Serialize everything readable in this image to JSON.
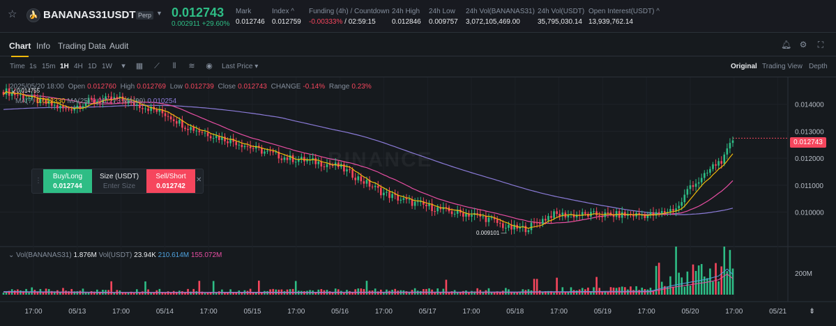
{
  "header": {
    "symbol": "BANANAS31USDT",
    "contract_type": "Perp",
    "last_price": "0.012743",
    "change": "0.002911 +29.60%",
    "stats": [
      {
        "label": "Mark",
        "value": "0.012746"
      },
      {
        "label": "Index ^",
        "value": "0.012759"
      },
      {
        "label": "Funding (4h) / Countdown",
        "value_neg": "-0.00333%",
        "value": " / 02:59:15"
      },
      {
        "label": "24h High",
        "value": "0.012846"
      },
      {
        "label": "24h Low",
        "value": "0.009757"
      },
      {
        "label": "24h Vol(BANANAS31)",
        "value": "3,072,105,469.00"
      },
      {
        "label": "24h Vol(USDT)",
        "value": "35,795,030.14"
      },
      {
        "label": "Open Interest(USDT) ^",
        "value": "13,939,762.14"
      }
    ]
  },
  "tabs": [
    "Chart",
    "Info",
    "Trading Data",
    "Audit"
  ],
  "toolbar": {
    "time_label": "Time",
    "timeframes": [
      "1s",
      "15m",
      "1H",
      "4H",
      "1D",
      "1W"
    ],
    "active_timeframe": "1H",
    "price_type": "Last Price",
    "views": [
      "Original",
      "Trading View",
      "Depth"
    ]
  },
  "ohlc": {
    "date": "2025/05/20 18:00",
    "open_label": "Open",
    "open": "0.012760",
    "high_label": "High",
    "high": "0.012769",
    "low_label": "Low",
    "low": "0.012739",
    "close_label": "Close",
    "close": "0.012743",
    "change_label": "CHANGE",
    "change": "-0.14%",
    "range_label": "Range",
    "range": "0.23%"
  },
  "ma": {
    "ma7_label": "MA(7)",
    "ma7": "0.012330",
    "ma25_label": "MA(25)",
    "ma25": "0.011273",
    "ma99_label": "MA(99)",
    "ma99": "0.010254"
  },
  "volume": {
    "label1": "Vol(BANANAS31)",
    "value1": "1.876M",
    "label2": "Vol(USDT)",
    "value2": "23.94K",
    "value3": "210.614M",
    "value4": "155.072M"
  },
  "trade_panel": {
    "buy_label": "Buy/Long",
    "buy_price": "0.012744",
    "size_label": "Size (USDT)",
    "size_placeholder": "Enter Size",
    "sell_label": "Sell/Short",
    "sell_price": "0.012742"
  },
  "annotations": {
    "high": "0.014755",
    "low": "0.009101"
  },
  "watermark": "BINANCE",
  "colors": {
    "up": "#2ebd85",
    "down": "#f6465d",
    "ma7": "#f0b90b",
    "ma25": "#e84ea3",
    "ma99": "#8b7bd8",
    "accent": "#f0b90b"
  },
  "chart_data": {
    "type": "candlestick",
    "price_axis": {
      "ticks": [
        "0.014000",
        "0.013000",
        "0.012000",
        "0.011000",
        "0.010000"
      ],
      "last_price": "0.012743",
      "range": [
        0.0088,
        0.015
      ]
    },
    "volume_axis": {
      "ticks": [
        "200M"
      ]
    },
    "x_labels": [
      "17:00",
      "05/13",
      "17:00",
      "05/14",
      "17:00",
      "05/15",
      "17:00",
      "05/16",
      "17:00",
      "05/17",
      "17:00",
      "05/18",
      "17:00",
      "05/19",
      "17:00",
      "05/20",
      "17:00",
      "05/21"
    ],
    "close_path": [
      [
        0,
        0.0145
      ],
      [
        10,
        0.0142
      ],
      [
        22,
        0.0138
      ],
      [
        30,
        0.0141
      ],
      [
        40,
        0.0142
      ],
      [
        50,
        0.0139
      ],
      [
        58,
        0.0136
      ],
      [
        64,
        0.0132
      ],
      [
        75,
        0.0128
      ],
      [
        82,
        0.0126
      ],
      [
        90,
        0.0123
      ],
      [
        100,
        0.012
      ],
      [
        108,
        0.0119
      ],
      [
        118,
        0.0117
      ],
      [
        126,
        0.0112
      ],
      [
        134,
        0.0107
      ],
      [
        142,
        0.0104
      ],
      [
        150,
        0.0102
      ],
      [
        158,
        0.01
      ],
      [
        166,
        0.0099
      ],
      [
        172,
        0.0097
      ],
      [
        178,
        0.0094
      ],
      [
        184,
        0.0094
      ],
      [
        188,
        0.0096
      ],
      [
        193,
        0.0099
      ],
      [
        200,
        0.0099
      ],
      [
        210,
        0.0099
      ],
      [
        220,
        0.0099
      ],
      [
        230,
        0.0099
      ],
      [
        238,
        0.0102
      ],
      [
        242,
        0.011
      ],
      [
        246,
        0.0112
      ],
      [
        250,
        0.0117
      ],
      [
        254,
        0.012
      ],
      [
        257,
        0.0127
      ]
    ],
    "last_index": 257,
    "volume_profile": [
      [
        0,
        40
      ],
      [
        40,
        30
      ],
      [
        120,
        32
      ],
      [
        180,
        35
      ],
      [
        228,
        45
      ],
      [
        236,
        120
      ],
      [
        242,
        160
      ],
      [
        248,
        200
      ],
      [
        252,
        240
      ],
      [
        255,
        330
      ],
      [
        257,
        260
      ]
    ],
    "volume_max": 340
  }
}
